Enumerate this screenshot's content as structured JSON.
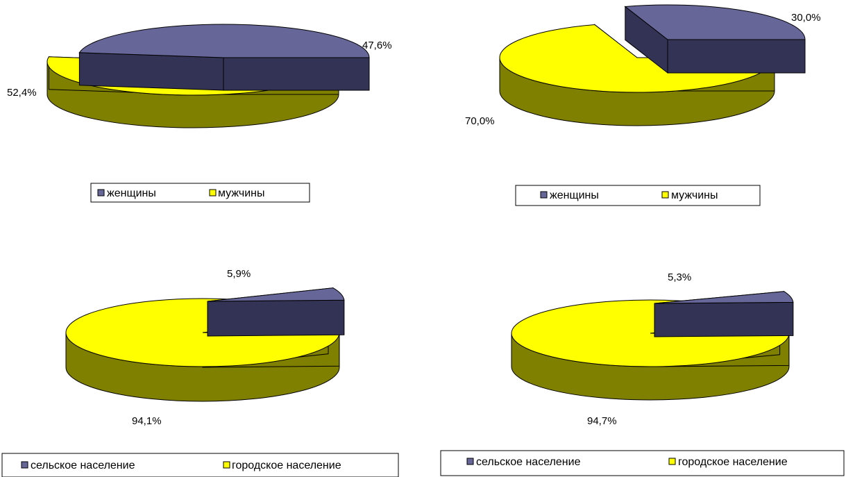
{
  "colors": {
    "women_top": "#666699",
    "women_side": "#333355",
    "men_top": "#FFFF00",
    "men_side": "#808000",
    "outline": "#000000"
  },
  "chart_data": [
    {
      "type": "pie",
      "categories": [
        "женщины",
        "мужчины"
      ],
      "values": [
        47.6,
        52.4
      ],
      "labels": [
        "47,6%",
        "52,4%"
      ],
      "legend": [
        "женщины",
        "мужчины"
      ],
      "exploded": true
    },
    {
      "type": "pie",
      "categories": [
        "женщины",
        "мужчины"
      ],
      "values": [
        30.0,
        70.0
      ],
      "labels": [
        "30,0%",
        "70,0%"
      ],
      "legend": [
        "женщины",
        "мужчины"
      ],
      "exploded": true
    },
    {
      "type": "pie",
      "categories": [
        "сельское население",
        "городское население"
      ],
      "values": [
        5.9,
        94.1
      ],
      "labels": [
        "5,9%",
        "94,1%"
      ],
      "legend": [
        "сельское население",
        "городское население"
      ],
      "exploded": true
    },
    {
      "type": "pie",
      "categories": [
        "сельское население",
        "городское население"
      ],
      "values": [
        5.3,
        94.7
      ],
      "labels": [
        "5,3%",
        "94,7%"
      ],
      "legend": [
        "сельское население",
        "городское население"
      ],
      "exploded": true
    }
  ]
}
